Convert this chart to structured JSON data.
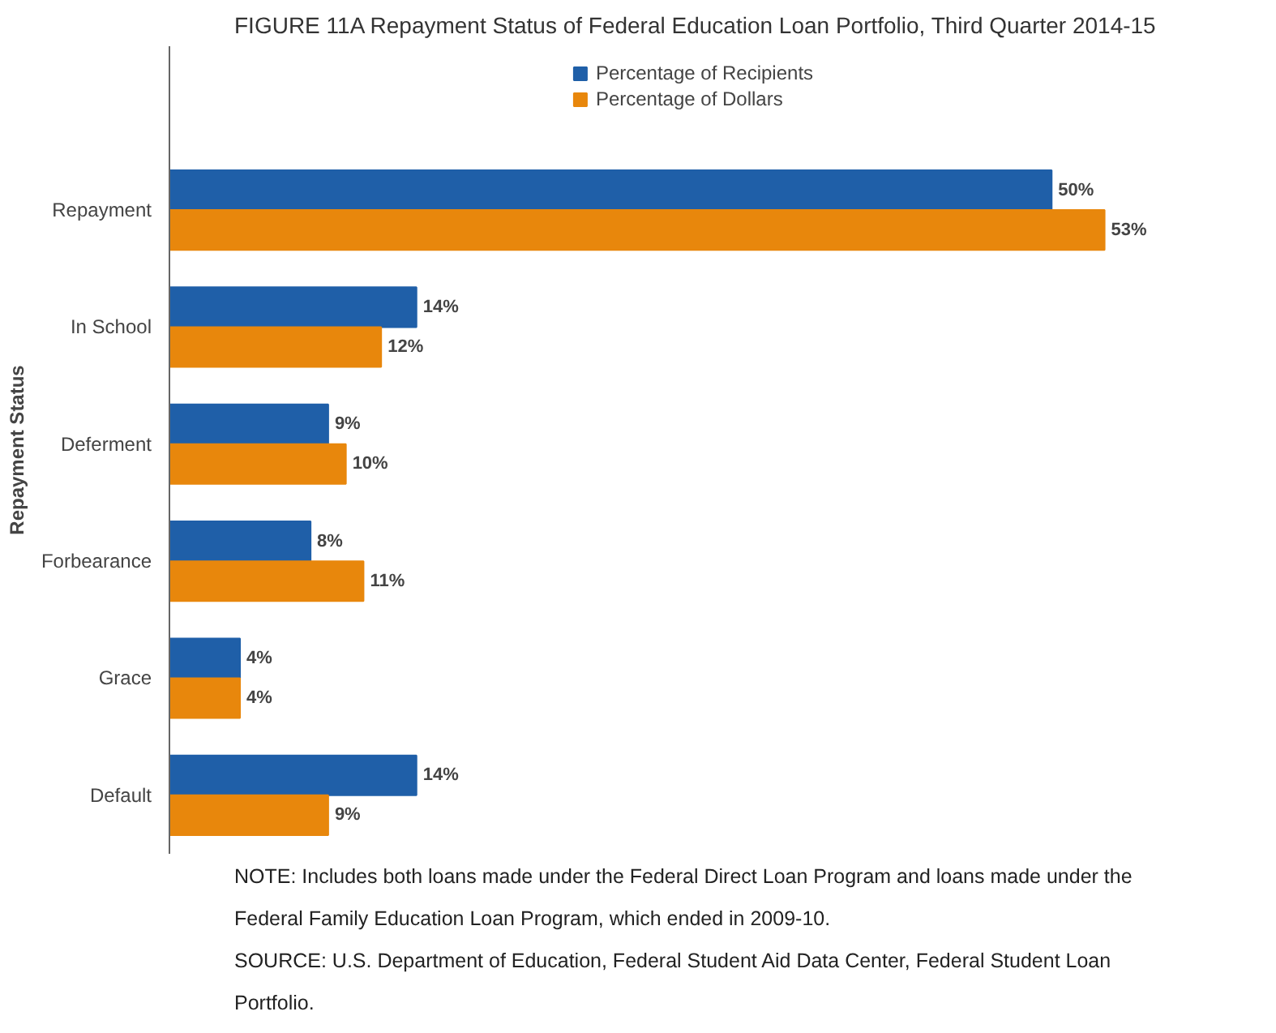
{
  "chart_data": {
    "type": "bar",
    "orientation": "horizontal",
    "title": "FIGURE 11A Repayment Status of Federal Education Loan Portfolio, Third Quarter 2014-15",
    "ylabel": "Repayment Status",
    "categories": [
      "Repayment",
      "In School",
      "Deferment",
      "Forbearance",
      "Grace",
      "Default"
    ],
    "series": [
      {
        "name": "Percentage of Recipients",
        "color": "#1f5fa8",
        "values": [
          50,
          14,
          9,
          8,
          4,
          14
        ],
        "value_labels": [
          "50%",
          "14%",
          "9%",
          "8%",
          "4%",
          "14%"
        ]
      },
      {
        "name": "Percentage of Dollars",
        "color": "#e8870c",
        "values": [
          53,
          12,
          10,
          11,
          4,
          9
        ],
        "value_labels": [
          "53%",
          "12%",
          "10%",
          "11%",
          "4%",
          "9%"
        ]
      }
    ],
    "legend": "top",
    "tick_labels": "y",
    "grid": false,
    "annotations": [
      "NOTE: Includes both loans made under the Federal Direct Loan Program and loans made under the Federal Family Education Loan Program, which ended in 2009-10.",
      "SOURCE: U.S. Department of Education, Federal Student Aid Data Center, Federal Student Loan Portfolio."
    ]
  }
}
